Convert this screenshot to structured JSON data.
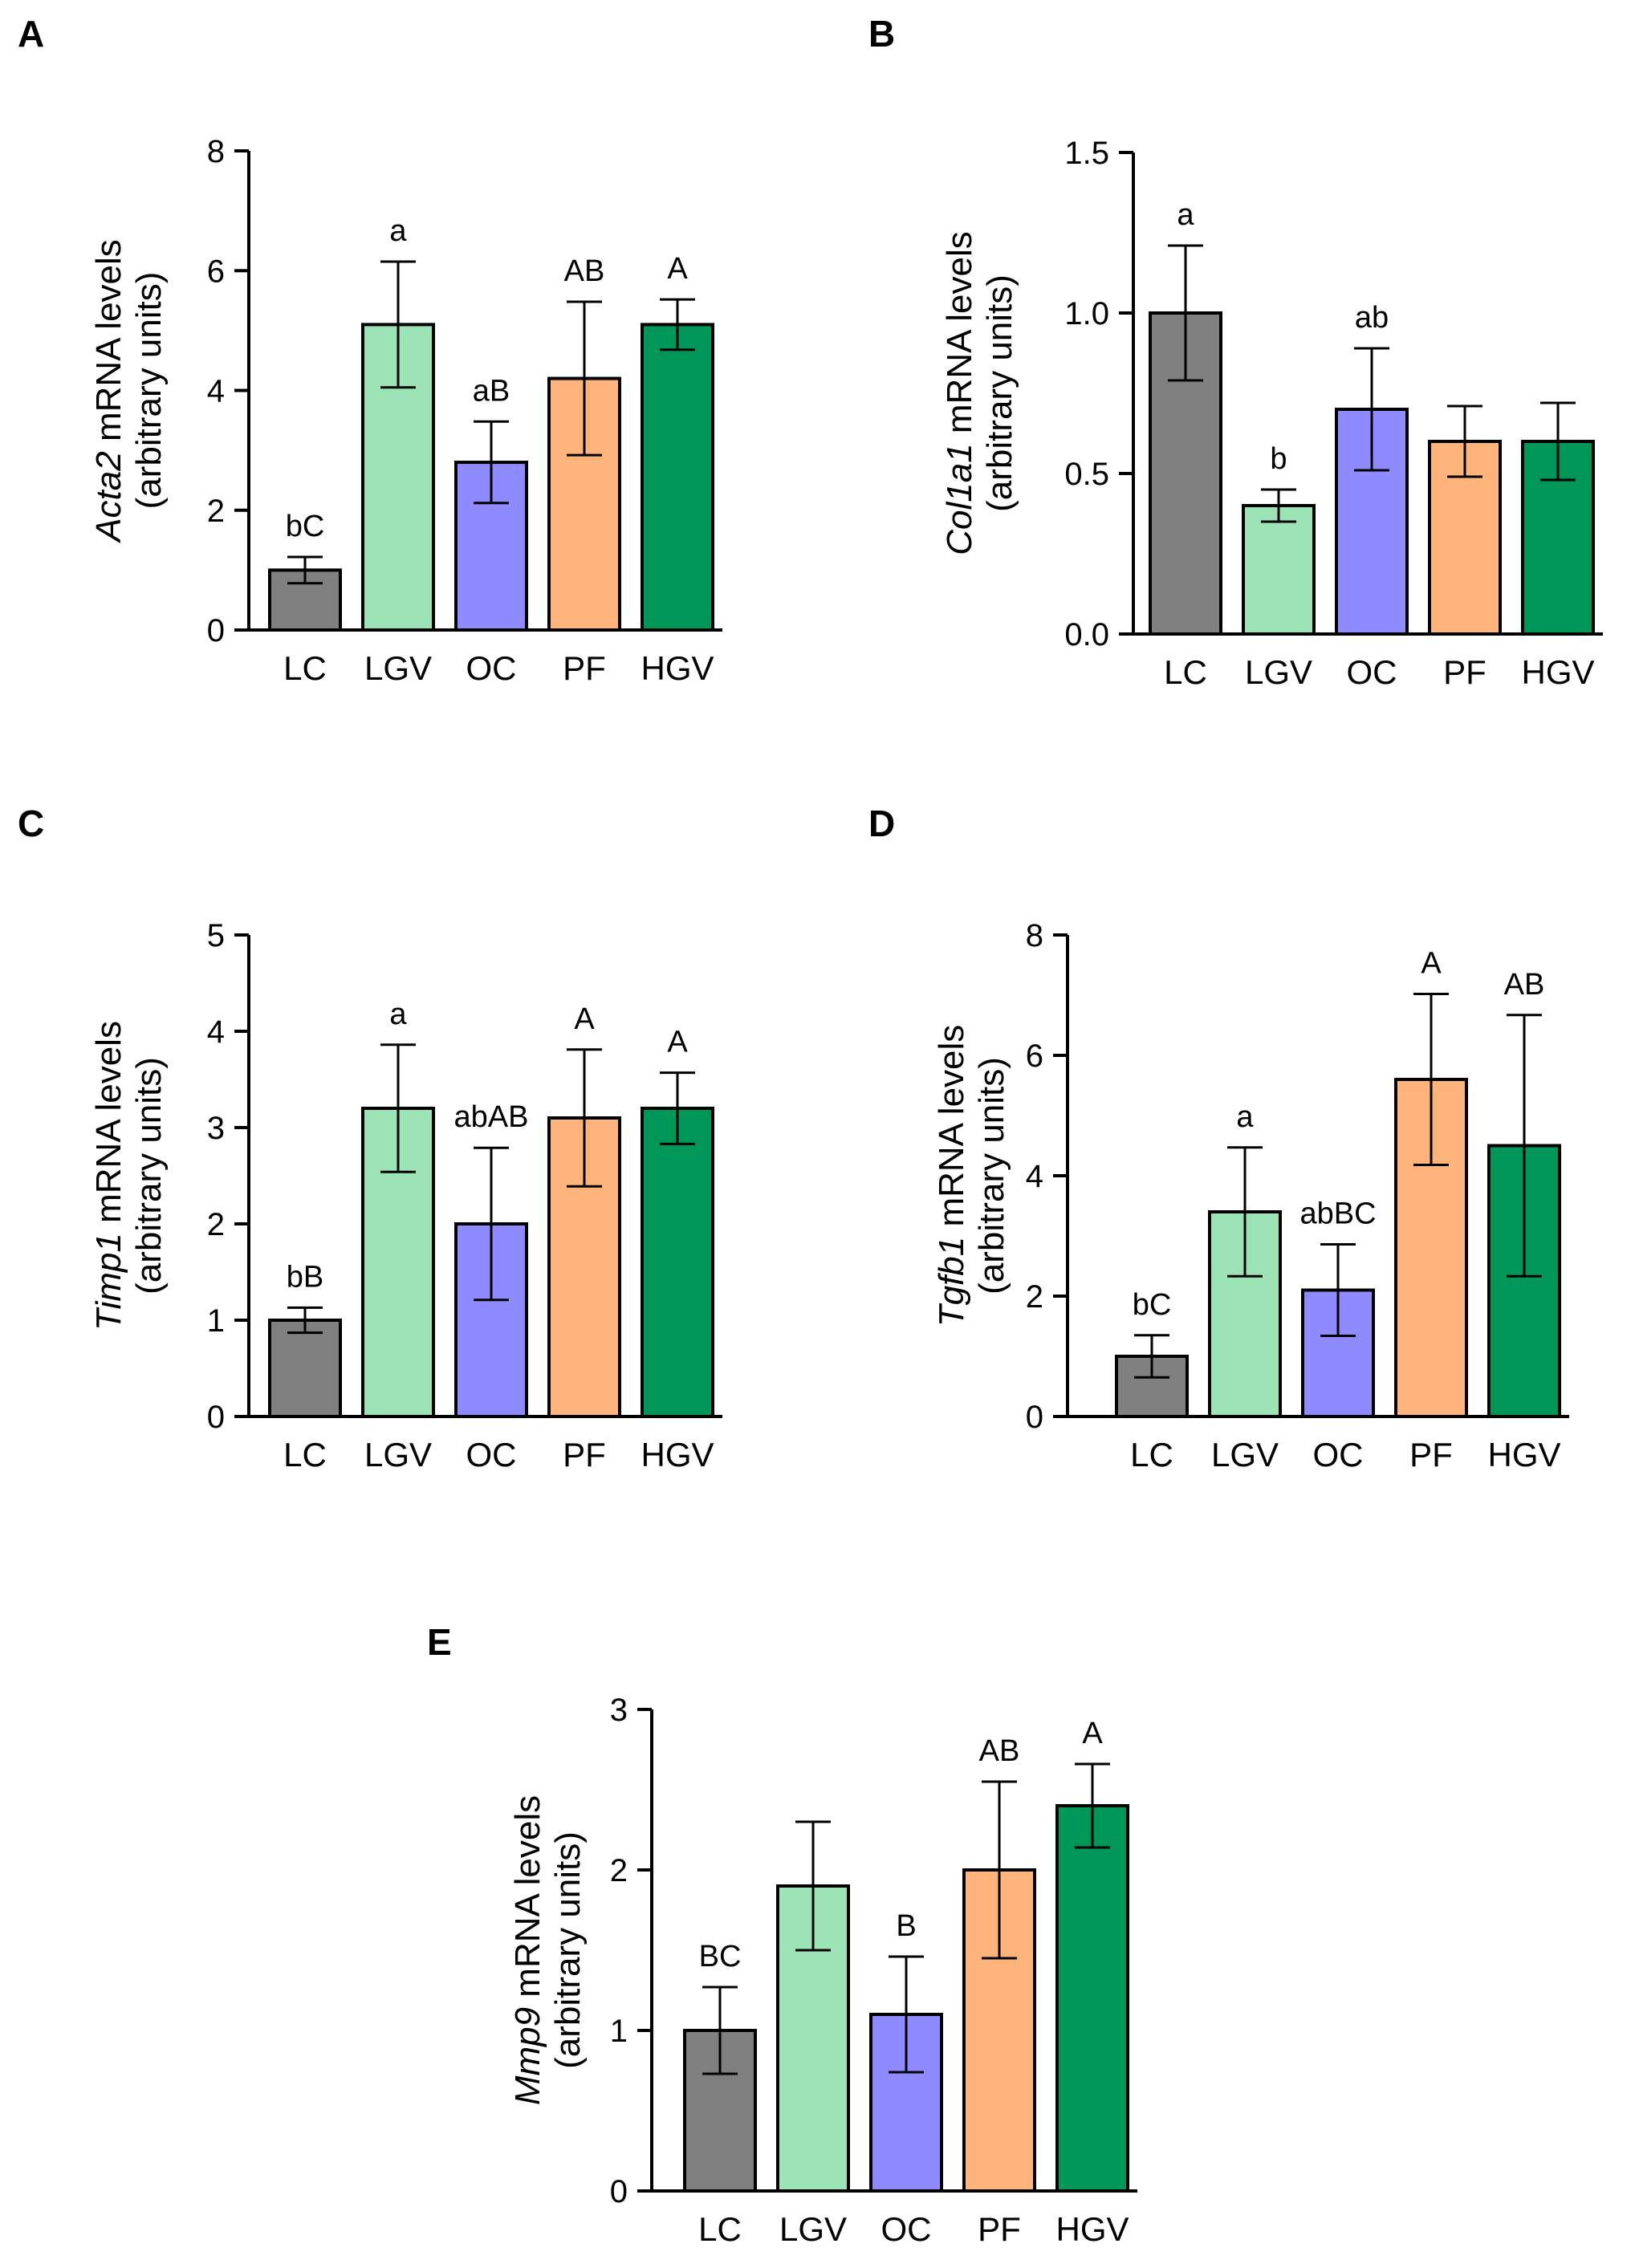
{
  "chart_data": [
    {
      "panel": "A",
      "type": "bar",
      "gene": "Acta2",
      "ylabel_line1_rest": " mRNA levels",
      "ylabel_line2": "(arbitrary units)",
      "categories": [
        "LC",
        "LGV",
        "OC",
        "PF",
        "HGV"
      ],
      "values": [
        1.0,
        5.1,
        2.8,
        4.2,
        5.1
      ],
      "errors": [
        0.22,
        1.05,
        0.68,
        1.28,
        0.42
      ],
      "significance": [
        "bC",
        "a",
        "aB",
        "AB",
        "A"
      ],
      "ylim": [
        0,
        8
      ],
      "yticks": [
        0,
        2,
        4,
        6,
        8
      ],
      "ytick_labels": [
        "0",
        "2",
        "4",
        "6",
        "8"
      ]
    },
    {
      "panel": "B",
      "type": "bar",
      "gene": "Col1a1",
      "ylabel_line1_rest": " mRNA levels",
      "ylabel_line2": "(arbitrary units)",
      "categories": [
        "LC",
        "LGV",
        "OC",
        "PF",
        "HGV"
      ],
      "values": [
        1.0,
        0.4,
        0.7,
        0.6,
        0.6
      ],
      "errors": [
        0.21,
        0.05,
        0.19,
        0.11,
        0.12
      ],
      "significance": [
        "a",
        "b",
        "ab",
        "",
        ""
      ],
      "ylim": [
        0,
        1.5
      ],
      "yticks": [
        0,
        0.5,
        1.0,
        1.5
      ],
      "ytick_labels": [
        "0.0",
        "0.5",
        "1.0",
        "1.5"
      ]
    },
    {
      "panel": "C",
      "type": "bar",
      "gene": "Timp1",
      "ylabel_line1_rest": " mRNA levels",
      "ylabel_line2": "(arbitrary units)",
      "categories": [
        "LC",
        "LGV",
        "OC",
        "PF",
        "HGV"
      ],
      "values": [
        1.0,
        3.2,
        2.0,
        3.1,
        3.2
      ],
      "errors": [
        0.13,
        0.66,
        0.79,
        0.71,
        0.37
      ],
      "significance": [
        "bB",
        "a",
        "abAB",
        "A",
        "A"
      ],
      "ylim": [
        0,
        5
      ],
      "yticks": [
        0,
        1,
        2,
        3,
        4,
        5
      ],
      "ytick_labels": [
        "0",
        "1",
        "2",
        "3",
        "4",
        "5"
      ]
    },
    {
      "panel": "D",
      "type": "bar",
      "gene": "Tgfb1",
      "ylabel_line1_rest": " mRNA levels",
      "ylabel_line2": "(arbitrary units)",
      "categories": [
        "LC",
        "LGV",
        "OC",
        "PF",
        "HGV"
      ],
      "values": [
        1.0,
        3.4,
        2.1,
        5.6,
        4.5
      ],
      "errors": [
        0.35,
        1.07,
        0.76,
        1.42,
        2.17
      ],
      "significance": [
        "bC",
        "a",
        "abBC",
        "A",
        "AB"
      ],
      "ylim": [
        0,
        8
      ],
      "yticks": [
        0,
        2,
        4,
        6,
        8
      ],
      "ytick_labels": [
        "0",
        "2",
        "4",
        "6",
        "8"
      ]
    },
    {
      "panel": "E",
      "type": "bar",
      "gene": "Mmp9",
      "ylabel_line1_rest": " mRNA levels",
      "ylabel_line2": "(arbitrary units)",
      "categories": [
        "LC",
        "LGV",
        "OC",
        "PF",
        "HGV"
      ],
      "values": [
        1.0,
        1.9,
        1.1,
        2.0,
        2.4
      ],
      "errors": [
        0.27,
        0.4,
        0.36,
        0.55,
        0.26
      ],
      "significance": [
        "BC",
        "",
        "B",
        "AB",
        "A"
      ],
      "ylim": [
        0,
        3
      ],
      "yticks": [
        0,
        1,
        2,
        3
      ],
      "ytick_labels": [
        "0",
        "1",
        "2",
        "3"
      ]
    }
  ],
  "colors": {
    "LC": "#808080",
    "LGV": "#9ce3b6",
    "OC": "#8f8bff",
    "PF": "#ffb47b",
    "HGV": "#009658",
    "axis": "#000000"
  }
}
